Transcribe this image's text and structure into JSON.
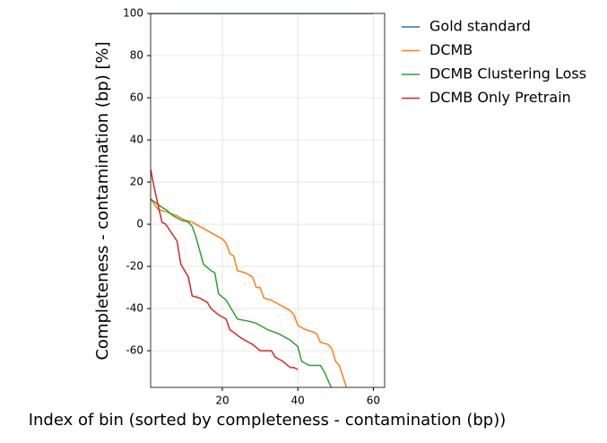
{
  "chart_data": {
    "type": "line",
    "xlabel": "Index of bin (sorted by completeness - contamination (bp))",
    "ylabel": "Completeness - contamination (bp) [%]",
    "xlim": [
      1,
      63
    ],
    "ylim": [
      -77.4,
      100
    ],
    "xticks": [
      20,
      40,
      60
    ],
    "yticks": [
      -60,
      -40,
      -20,
      0,
      20,
      40,
      60,
      80,
      100
    ],
    "grid": true,
    "legend": "outside upper right",
    "series": [
      {
        "name": "Gold standard",
        "color": "#1f77b4",
        "x": [
          1,
          60
        ],
        "values": [
          100,
          100
        ]
      },
      {
        "name": "DCMB",
        "color": "#ff7f0e",
        "x": [
          1,
          3,
          5,
          8,
          10,
          12,
          14,
          16,
          18,
          19,
          20,
          21,
          22,
          23,
          24,
          26,
          28,
          29,
          30,
          31,
          33,
          35,
          37,
          38,
          39,
          40,
          42,
          44,
          45,
          46,
          48,
          49,
          50,
          51,
          53
        ],
        "values": [
          12,
          7,
          6,
          4,
          2,
          1,
          -1,
          -3,
          -5,
          -6,
          -7,
          -9,
          -14,
          -15,
          -22,
          -23,
          -25,
          -30,
          -30,
          -35,
          -36,
          -38,
          -40,
          -41,
          -43,
          -48,
          -50,
          -51,
          -52,
          -56,
          -57,
          -59,
          -65,
          -67,
          -78
        ]
      },
      {
        "name": "DCMB Clustering Loss",
        "color": "#2ca02c",
        "x": [
          1,
          4,
          5,
          7,
          9,
          11,
          12,
          13,
          15,
          17,
          18,
          19,
          21,
          23,
          24,
          27,
          29,
          31,
          32,
          35,
          36,
          38,
          40,
          41,
          43,
          46,
          47,
          49
        ],
        "values": [
          12,
          8,
          7,
          4,
          2,
          1,
          -1,
          -6,
          -19,
          -22,
          -23,
          -33,
          -36,
          -42,
          -45,
          -46,
          -47,
          -49,
          -50,
          -52,
          -53,
          -55,
          -58,
          -65,
          -67,
          -67,
          -70,
          -78
        ]
      },
      {
        "name": "DCMB Only Pretrain",
        "color": "#d62728",
        "x": [
          1,
          2,
          3,
          4,
          5,
          8,
          9,
          11,
          12,
          14,
          16,
          17,
          19,
          21,
          22,
          25,
          28,
          30,
          33,
          34,
          36,
          38,
          39,
          40
        ],
        "values": [
          26,
          17,
          9,
          1,
          0,
          -8,
          -19,
          -25,
          -34,
          -35,
          -37,
          -40,
          -43,
          -45,
          -50,
          -54,
          -57,
          -60,
          -60,
          -63,
          -65,
          -68,
          -68,
          -69
        ]
      }
    ]
  }
}
